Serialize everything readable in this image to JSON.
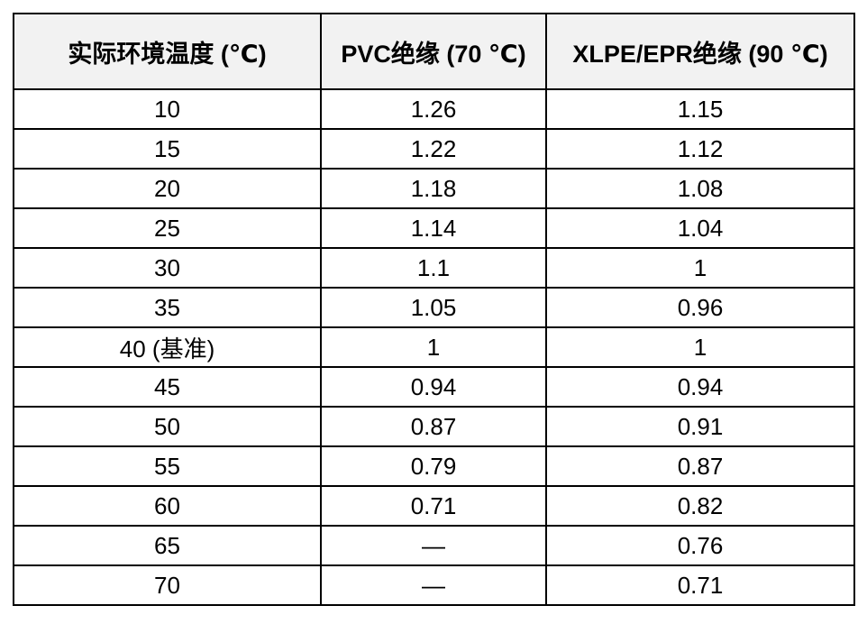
{
  "table": {
    "columns": [
      "实际环境温度 (℃)",
      "PVC绝缘 (70 ℃)",
      "XLPE/EPR绝缘 (90 ℃)"
    ],
    "rows": [
      [
        "10",
        "1.26",
        "1.15"
      ],
      [
        "15",
        "1.22",
        "1.12"
      ],
      [
        "20",
        "1.18",
        "1.08"
      ],
      [
        "25",
        "1.14",
        "1.04"
      ],
      [
        "30",
        "1.1",
        "1"
      ],
      [
        "35",
        "1.05",
        "0.96"
      ],
      [
        "40 (基准)",
        "1",
        "1"
      ],
      [
        "45",
        "0.94",
        "0.94"
      ],
      [
        "50",
        "0.87",
        "0.91"
      ],
      [
        "55",
        "0.79",
        "0.87"
      ],
      [
        "60",
        "0.71",
        "0.82"
      ],
      [
        "65",
        "—",
        "0.76"
      ],
      [
        "70",
        "—",
        "0.71"
      ]
    ]
  },
  "colors": {
    "page_bg": "#ffffff",
    "header_bg": "#f2f2f2",
    "border": "#000000",
    "text": "#000000"
  },
  "chart_data": {
    "type": "table",
    "title": "",
    "columns": [
      "实际环境温度 (℃)",
      "PVC绝缘 (70 ℃)",
      "XLPE/EPR绝缘 (90 ℃)"
    ],
    "categories": [
      "10",
      "15",
      "20",
      "25",
      "30",
      "35",
      "40 (基准)",
      "45",
      "50",
      "55",
      "60",
      "65",
      "70"
    ],
    "series": [
      {
        "name": "PVC绝缘 (70 ℃)",
        "values": [
          1.26,
          1.22,
          1.18,
          1.14,
          1.1,
          1.05,
          1,
          0.94,
          0.87,
          0.79,
          0.71,
          null,
          null
        ]
      },
      {
        "name": "XLPE/EPR绝缘 (90 ℃)",
        "values": [
          1.15,
          1.12,
          1.08,
          1.04,
          1,
          0.96,
          1,
          0.94,
          0.91,
          0.87,
          0.82,
          0.76,
          0.71
        ]
      }
    ],
    "missing_value_symbol": "—"
  }
}
